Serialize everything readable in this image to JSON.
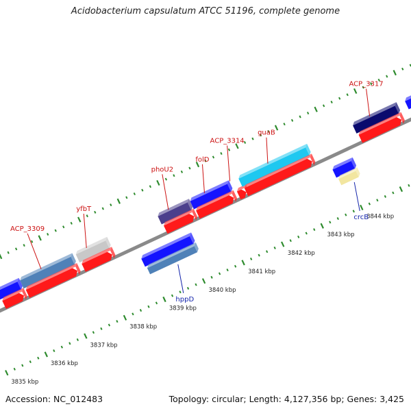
{
  "title": "Acidobacterium capsulatum ATCC 51196, complete genome",
  "accession": "Accession: NC_012483",
  "summary": "Topology: circular; Length: 4,127,356 bp; Genes: 3,425",
  "colors": {
    "backbone": "#8a8a8a",
    "ticks": "#2e8b2e",
    "forward_label": "#cc1111",
    "reverse_label": "#1122aa",
    "cds": "#ff1a1a"
  },
  "scale_labels": [
    {
      "position_kbp": 3835,
      "label": "3835 kbp"
    },
    {
      "position_kbp": 3836,
      "label": "3836 kbp"
    },
    {
      "position_kbp": 3837,
      "label": "3837 kbp"
    },
    {
      "position_kbp": 3838,
      "label": "3838 kbp"
    },
    {
      "position_kbp": 3839,
      "label": "3839 kbp"
    },
    {
      "position_kbp": 3840,
      "label": "3840 kbp"
    },
    {
      "position_kbp": 3841,
      "label": "3841 kbp"
    },
    {
      "position_kbp": 3842,
      "label": "3842 kbp"
    },
    {
      "position_kbp": 3843,
      "label": "3843 kbp"
    },
    {
      "position_kbp": 3844,
      "label": "3844 kbp"
    }
  ],
  "forward_genes": [
    {
      "name": "",
      "color": "#ff2aa0",
      "cds": true
    },
    {
      "name": "",
      "color": "#1414ff",
      "cds": true
    },
    {
      "name": "ACP_3309",
      "color": "#4f81b8",
      "cds": true
    },
    {
      "name": "yfbT",
      "color": "#c8c8c8",
      "cds": true
    },
    {
      "name": "phoU2",
      "color": "#4b3f8c",
      "cds": true
    },
    {
      "name": "folD",
      "color": "#1414ff",
      "cds": true
    },
    {
      "name": "ACP_3314",
      "color": "#ff1a1a",
      "cds": false
    },
    {
      "name": "guaB",
      "color": "#1ec8f0",
      "cds": true
    },
    {
      "name": "ACP_3317",
      "color": "#0a0a6e",
      "cds": true
    },
    {
      "name": "",
      "color": "#1414ff",
      "cds": false
    }
  ],
  "reverse_genes": [
    {
      "name": "hppD",
      "color": "#1414ff",
      "under_color": "#4f81b8",
      "cds": true
    },
    {
      "name": "crcB",
      "color": "#1414ff",
      "under_color": "#f2e6a0",
      "cds": false
    },
    {
      "name": "",
      "color": "#4f81b8",
      "under_color": "",
      "cds": false
    }
  ]
}
